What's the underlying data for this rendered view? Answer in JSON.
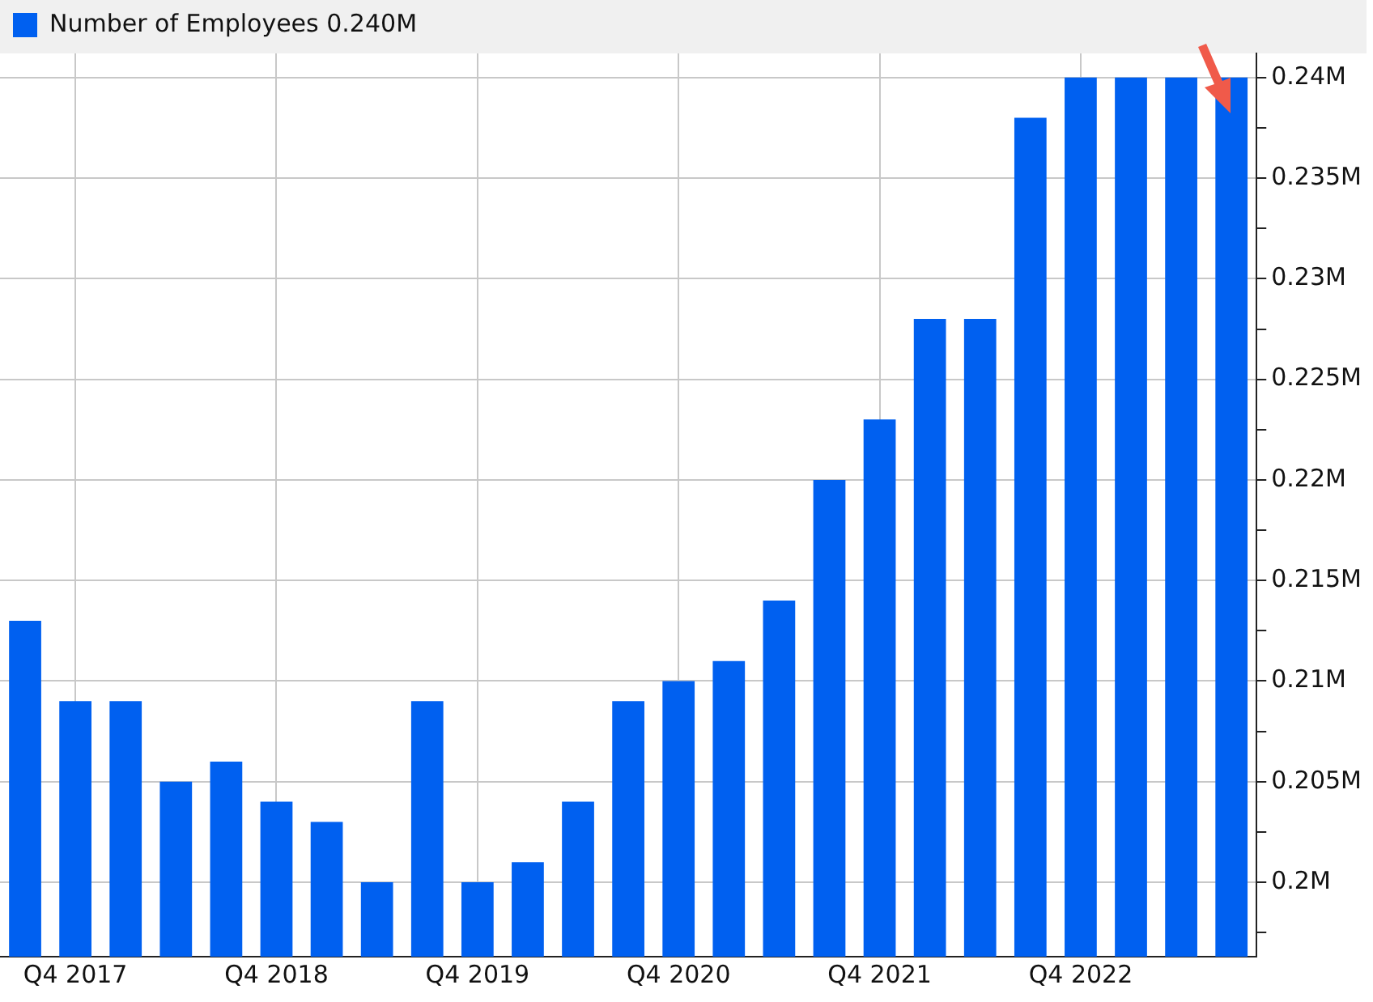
{
  "chart_data": {
    "type": "bar",
    "categories": [
      null,
      "Q4 2017",
      null,
      null,
      null,
      "Q4 2018",
      null,
      null,
      null,
      "Q4 2019",
      null,
      null,
      null,
      "Q4 2020",
      null,
      null,
      null,
      "Q4 2021",
      null,
      null,
      null,
      "Q4 2022",
      null,
      null,
      null
    ],
    "series": [
      {
        "name": "Number of Employees 0.240M",
        "color": "#0060f0",
        "values": [
          0.213,
          0.209,
          0.209,
          0.205,
          0.206,
          0.204,
          0.203,
          0.2,
          0.209,
          0.2,
          0.201,
          0.204,
          0.209,
          0.21,
          0.211,
          0.214,
          0.22,
          0.223,
          0.228,
          0.228,
          0.238,
          0.24,
          0.24,
          0.24,
          0.24
        ]
      }
    ],
    "ylim": [
      0.1963,
      0.2412
    ],
    "yticks": [
      {
        "value": 0.1975,
        "label": null
      },
      {
        "value": 0.2,
        "label": "0.2M"
      },
      {
        "value": 0.2025,
        "label": null
      },
      {
        "value": 0.205,
        "label": "0.205M"
      },
      {
        "value": 0.2075,
        "label": null
      },
      {
        "value": 0.21,
        "label": "0.21M"
      },
      {
        "value": 0.2125,
        "label": null
      },
      {
        "value": 0.215,
        "label": "0.215M"
      },
      {
        "value": 0.2175,
        "label": null
      },
      {
        "value": 0.22,
        "label": "0.22M"
      },
      {
        "value": 0.2225,
        "label": null
      },
      {
        "value": 0.225,
        "label": "0.225M"
      },
      {
        "value": 0.2275,
        "label": null
      },
      {
        "value": 0.23,
        "label": "0.23M"
      },
      {
        "value": 0.2325,
        "label": null
      },
      {
        "value": 0.235,
        "label": "0.235M"
      },
      {
        "value": 0.2375,
        "label": null
      },
      {
        "value": 0.24,
        "label": "0.24M"
      }
    ],
    "grid": true,
    "legend": "top left"
  }
}
